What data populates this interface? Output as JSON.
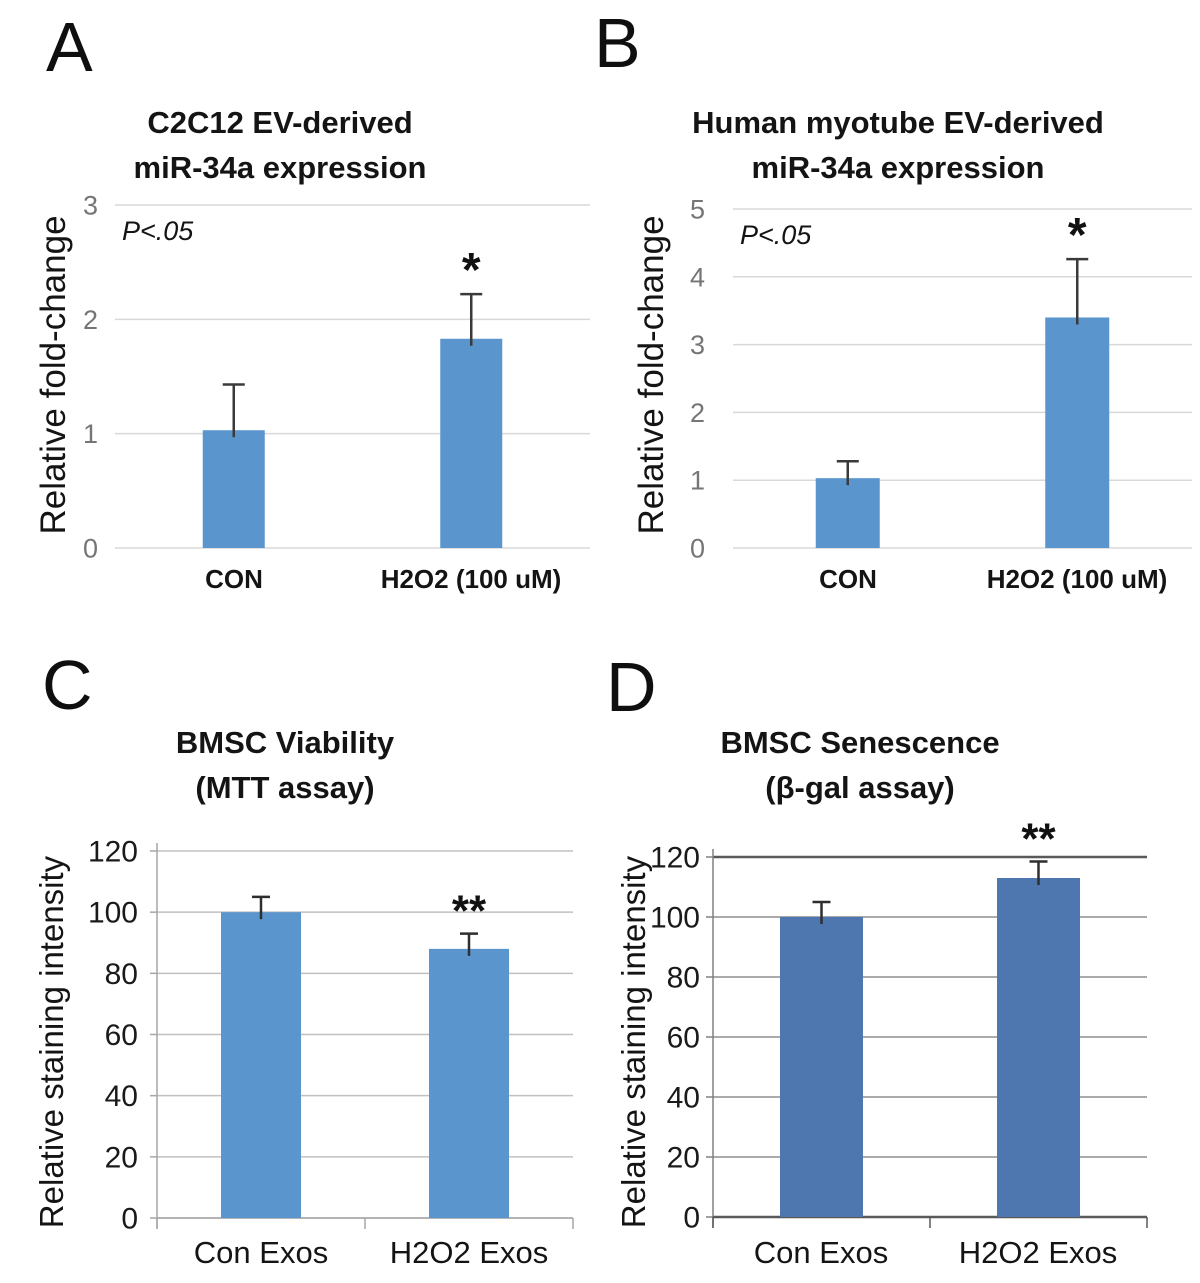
{
  "figure": {
    "background": "#ffffff"
  },
  "chart_data": [
    {
      "panel_label": "A",
      "type": "bar",
      "title_lines": [
        "C2C12 EV-derived",
        "miR-34a expression"
      ],
      "ylabel": "Relative fold-change",
      "annotation": "P<.05",
      "categories": [
        "CON",
        "H2O2 (100 uM)"
      ],
      "values": [
        1.03,
        1.83
      ],
      "errors_plus": [
        0.4,
        0.39
      ],
      "sig_labels": [
        "",
        "*"
      ],
      "ylim": [
        0,
        3
      ],
      "yticks": [
        0,
        1,
        2,
        3
      ],
      "grid": "horizontal",
      "legend": "none",
      "styles": {
        "bar": "#5a96cd",
        "grid": "#d9d9d9",
        "tick_label": "#757575",
        "error": "#3a3a3a",
        "sig": "#111111"
      }
    },
    {
      "panel_label": "B",
      "type": "bar",
      "title_lines": [
        "Human myotube EV-derived",
        "miR-34a expression"
      ],
      "ylabel": "Relative fold-change",
      "annotation": "P<.05",
      "categories": [
        "CON",
        "H2O2 (100 uM)"
      ],
      "values": [
        1.03,
        3.4
      ],
      "errors_plus": [
        0.25,
        0.86
      ],
      "sig_labels": [
        "",
        "*"
      ],
      "ylim": [
        0,
        5
      ],
      "yticks": [
        0,
        1,
        2,
        3,
        4,
        5
      ],
      "grid": "horizontal",
      "legend": "none",
      "styles": {
        "bar": "#5a96cd",
        "grid": "#d9d9d9",
        "tick_label": "#757575",
        "error": "#3a3a3a",
        "sig": "#111111"
      }
    },
    {
      "panel_label": "C",
      "type": "bar",
      "title_lines": [
        "BMSC Viability",
        "(MTT assay)"
      ],
      "ylabel": "Relative staining intensity",
      "categories": [
        "Con Exos",
        "H2O2 Exos"
      ],
      "values": [
        100,
        88
      ],
      "errors_plus": [
        5,
        5
      ],
      "sig_labels": [
        "",
        "**"
      ],
      "ylim": [
        0,
        120
      ],
      "yticks": [
        0,
        20,
        40,
        60,
        80,
        100,
        120
      ],
      "grid": "horizontal",
      "legend": "none",
      "styles": {
        "bar": "#5a96cd",
        "grid": "#c0c0c0",
        "axis": "#a6a6a6",
        "tick_label": "#1a1a1a",
        "error": "#2e2e2e",
        "sig": "#111111"
      }
    },
    {
      "panel_label": "D",
      "type": "bar",
      "title_lines": [
        "BMSC Senescence",
        "(β-gal assay)"
      ],
      "ylabel": "Relative staining intensity",
      "categories": [
        "Con Exos",
        "H2O2 Exos"
      ],
      "values": [
        100,
        113
      ],
      "errors_plus": [
        5,
        5.5
      ],
      "sig_labels": [
        "",
        "**"
      ],
      "ylim": [
        0,
        120
      ],
      "yticks": [
        0,
        20,
        40,
        60,
        80,
        100,
        120
      ],
      "grid": "horizontal",
      "legend": "none",
      "styles": {
        "bar": "#4d77ae",
        "grid": "#8e8e8e",
        "axis": "#808080",
        "axis_dark": "#595959",
        "tick_label": "#1a1a1a",
        "error": "#2e2e2e",
        "sig": "#111111"
      }
    }
  ]
}
